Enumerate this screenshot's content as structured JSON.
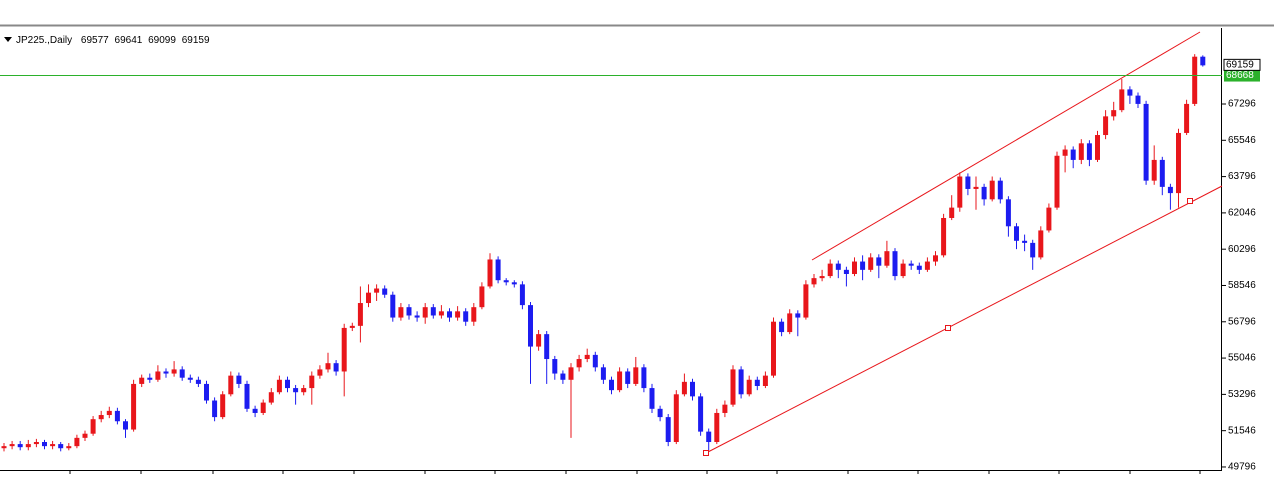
{
  "chart_data": {
    "type": "candlestick",
    "symbol": "JP225.,Daily",
    "up_color": "#e8161b",
    "down_color": "#1c1cf0",
    "hline": 68668,
    "hline_color": "#2bb12b",
    "ylim": [
      49650,
      70960
    ],
    "yticks": [
      49796,
      51546,
      53296,
      55046,
      56796,
      58546,
      60296,
      62046,
      63796,
      65546,
      67296
    ],
    "open": [
      50700,
      50800,
      50900,
      50750,
      50900,
      51000,
      50800,
      50900,
      50700,
      50800,
      51200,
      51400,
      52100,
      52300,
      52500,
      52000,
      51600,
      53800,
      54100,
      54000,
      54400,
      54300,
      54500,
      54100,
      54000,
      53800,
      53000,
      52200,
      53300,
      54200,
      53800,
      52600,
      52400,
      52900,
      53400,
      54000,
      53600,
      53400,
      53600,
      54200,
      54500,
      54800,
      54400,
      56500,
      56600,
      57700,
      58200,
      58400,
      58100,
      57000,
      57500,
      57100,
      57000,
      57500,
      57100,
      57300,
      57000,
      57300,
      56800,
      57500,
      58500,
      59800,
      58800,
      58700,
      58600,
      57600,
      55600,
      56200,
      55000,
      54300,
      54000,
      54600,
      55000,
      55200,
      54600,
      54000,
      53500,
      54400,
      53800,
      54600,
      53600,
      52600,
      52200,
      51000,
      53300,
      53900,
      53200,
      51500,
      51000,
      52400,
      52800,
      54500,
      53300,
      54000,
      53700,
      54200,
      56800,
      56300,
      57200,
      57000,
      58600,
      58900,
      59000,
      59600,
      59300,
      59100,
      59700,
      59300,
      59900,
      59500,
      60200,
      59000,
      59600,
      59500,
      59300,
      59700,
      60000,
      61800,
      62300,
      63800,
      63200,
      63300,
      62700,
      63600,
      62700,
      61400,
      60700,
      60600,
      59900,
      61200,
      62300,
      64800,
      65100,
      64600,
      65400,
      64600,
      65800,
      66700,
      67000,
      68000,
      67700,
      67300,
      63600,
      64600,
      63300,
      63000,
      65900,
      67300,
      69577
    ],
    "high": [
      50950,
      51050,
      51050,
      51100,
      51150,
      51100,
      51050,
      51000,
      50950,
      51350,
      51550,
      52250,
      52500,
      52700,
      52650,
      52100,
      54000,
      54250,
      54300,
      54700,
      54550,
      54900,
      54650,
      54250,
      54150,
      53950,
      53150,
      53450,
      54400,
      54350,
      53950,
      52750,
      53050,
      53600,
      54200,
      54150,
      53750,
      53750,
      54400,
      54700,
      55300,
      54950,
      56700,
      56750,
      58500,
      58600,
      58600,
      58550,
      58250,
      57700,
      57650,
      57300,
      57700,
      57650,
      57600,
      57450,
      57550,
      57450,
      57700,
      58700,
      60100,
      59950,
      58900,
      58800,
      58750,
      57750,
      56400,
      56350,
      55150,
      54450,
      54800,
      55200,
      55500,
      55350,
      54750,
      54150,
      54600,
      54550,
      55100,
      54750,
      53800,
      52750,
      52350,
      53500,
      54300,
      54050,
      53350,
      51650,
      52600,
      53000,
      54700,
      54650,
      54200,
      54150,
      54400,
      57000,
      56950,
      57400,
      57350,
      58800,
      59100,
      59300,
      59800,
      59750,
      59450,
      59900,
      60000,
      60100,
      60050,
      60700,
      60350,
      59800,
      59750,
      59650,
      59900,
      60200,
      62000,
      62900,
      64000,
      63950,
      63800,
      63450,
      63800,
      63750,
      62850,
      61550,
      61000,
      60750,
      61400,
      62500,
      65000,
      65300,
      65250,
      65600,
      65550,
      66000,
      67000,
      67400,
      68500,
      68150,
      67850,
      67450,
      65300,
      64750,
      63450,
      66100,
      67500,
      69700,
      69641
    ],
    "low": [
      50550,
      50650,
      50600,
      50600,
      50750,
      50650,
      50650,
      50550,
      50600,
      50700,
      51050,
      51300,
      51950,
      52150,
      51850,
      51200,
      51500,
      53650,
      53850,
      53900,
      54100,
      54150,
      53950,
      53850,
      53650,
      52850,
      52000,
      52100,
      53200,
      53600,
      52450,
      52200,
      52300,
      52800,
      53300,
      53400,
      52800,
      53250,
      52800,
      54050,
      54350,
      54200,
      53200,
      56350,
      55800,
      57500,
      57800,
      57950,
      56800,
      56850,
      56900,
      56800,
      56700,
      56950,
      56950,
      56800,
      56850,
      56600,
      56600,
      57400,
      58400,
      58650,
      58550,
      58450,
      57400,
      53800,
      55400,
      53800,
      54000,
      53800,
      51200,
      54400,
      54850,
      54400,
      53800,
      53300,
      53400,
      53600,
      53700,
      53400,
      52400,
      52000,
      50800,
      50900,
      53200,
      53000,
      51300,
      50600,
      50900,
      52200,
      52700,
      53100,
      53200,
      53500,
      53600,
      54100,
      56100,
      56200,
      56100,
      56900,
      58450,
      58750,
      58900,
      58900,
      58500,
      59000,
      58800,
      59200,
      58900,
      59400,
      58800,
      58900,
      59300,
      59100,
      59200,
      59500,
      59900,
      61700,
      62100,
      62900,
      62200,
      62400,
      62600,
      62500,
      60900,
      60300,
      60200,
      59300,
      59800,
      61100,
      62200,
      64000,
      64200,
      64400,
      64300,
      64500,
      65600,
      66500,
      66900,
      67300,
      67100,
      63400,
      63400,
      62900,
      62200,
      62300,
      65800,
      67200,
      69099
    ],
    "close": [
      50800,
      50900,
      50750,
      50900,
      51000,
      50800,
      50900,
      50700,
      50800,
      51200,
      51400,
      52100,
      52300,
      52500,
      52000,
      51600,
      53800,
      54100,
      54000,
      54400,
      54300,
      54500,
      54100,
      54000,
      53800,
      53000,
      52200,
      53300,
      54200,
      53800,
      52600,
      52400,
      52900,
      53400,
      54000,
      53600,
      53400,
      53600,
      54200,
      54500,
      54800,
      54400,
      56500,
      56600,
      57700,
      58200,
      58400,
      58100,
      57000,
      57500,
      57100,
      57000,
      57500,
      57100,
      57300,
      57000,
      57300,
      56800,
      57500,
      58500,
      59800,
      58800,
      58700,
      58600,
      57600,
      55600,
      56200,
      55000,
      54300,
      54000,
      54600,
      55000,
      55200,
      54600,
      54000,
      53500,
      54400,
      53800,
      54600,
      53600,
      52600,
      52200,
      51000,
      53300,
      53900,
      53200,
      51500,
      51000,
      52400,
      52800,
      54500,
      53300,
      54000,
      53700,
      54200,
      56800,
      56300,
      57200,
      57000,
      58600,
      58900,
      59000,
      59600,
      59300,
      59100,
      59700,
      59300,
      59900,
      59500,
      60200,
      59000,
      59600,
      59500,
      59300,
      59700,
      60000,
      61800,
      62300,
      63800,
      63200,
      63300,
      62700,
      63600,
      62700,
      61400,
      60700,
      60600,
      59900,
      61200,
      62300,
      64800,
      65100,
      64600,
      65400,
      64600,
      65800,
      66700,
      67000,
      68000,
      67700,
      67300,
      63600,
      64600,
      63300,
      63000,
      65900,
      67300,
      69577,
      69159
    ]
  }
}
